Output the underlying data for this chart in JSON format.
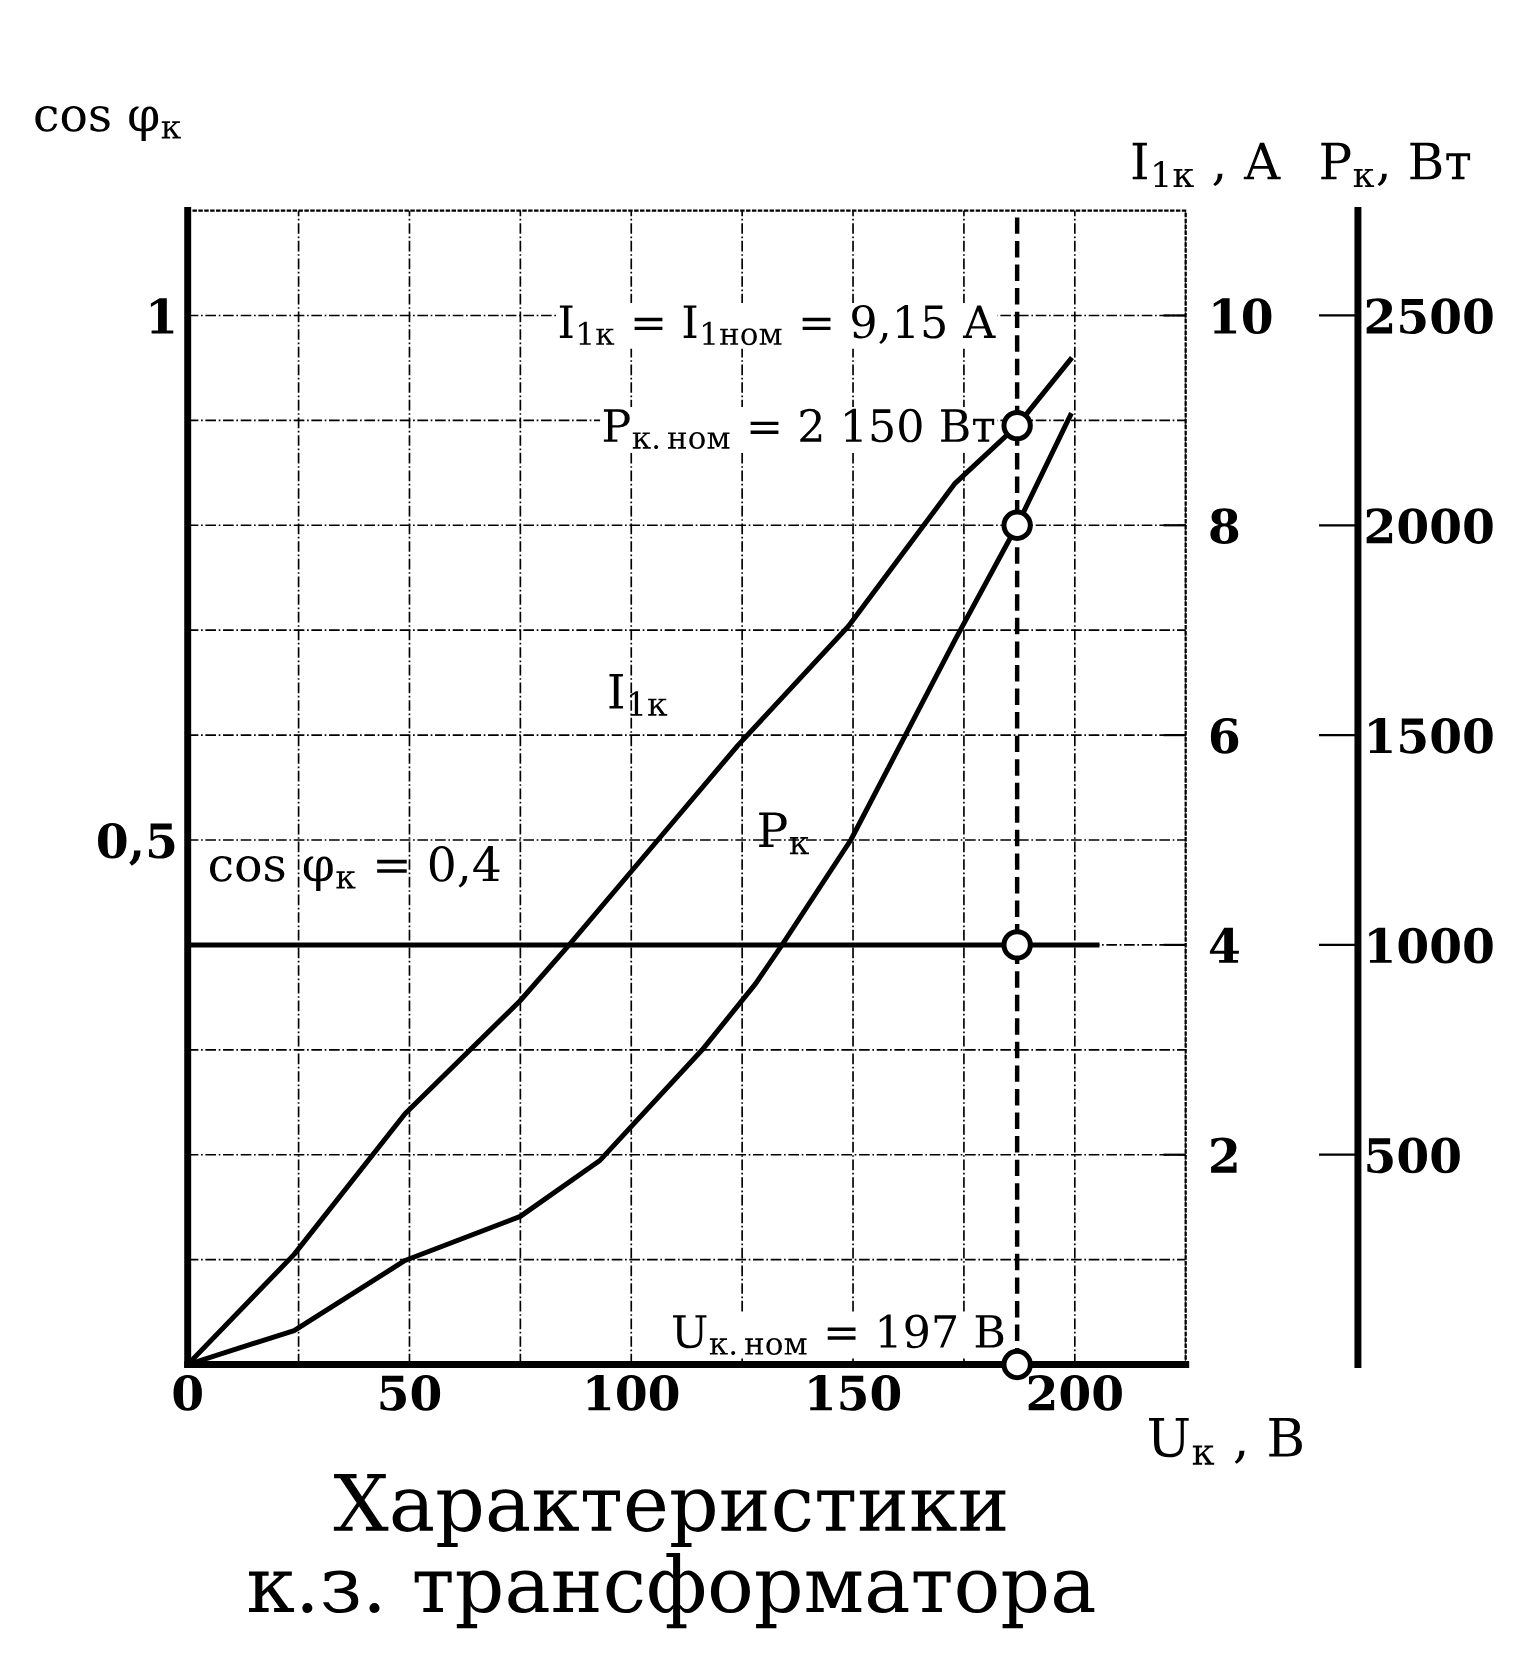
{
  "chart_data": {
    "type": "line",
    "title": "Характеристики\nк.з. трансформатора",
    "xlabel": "U$_{к}$ , В",
    "ylabel": "cos φ$_{к}$",
    "y2label": "I$_{1к}$ , А",
    "y3label": "P$_{к}$, Вт",
    "xlim": [
      0,
      225
    ],
    "xticks": [
      0,
      {
        "value": 25,
        "label": null
      },
      50,
      {
        "value": 75,
        "label": null
      },
      100,
      {
        "value": 125,
        "label": null
      },
      150,
      {
        "value": 175,
        "label": null
      },
      200,
      {
        "value": 225,
        "label": null
      }
    ],
    "ylim": [
      0,
      1.1
    ],
    "yticks": [
      {
        "value": 0.1,
        "label": null
      },
      {
        "value": 0.2,
        "label": null
      },
      {
        "value": 0.3,
        "label": null
      },
      {
        "value": 0.4,
        "label": null
      },
      {
        "value": 0.5,
        "label": "0,5"
      },
      {
        "value": 0.6,
        "label": null
      },
      {
        "value": 0.7,
        "label": null
      },
      {
        "value": 0.8,
        "label": null
      },
      {
        "value": 0.9,
        "label": null
      },
      {
        "value": 1,
        "label": "1"
      }
    ],
    "y2lim": [
      0,
      11
    ],
    "y2ticks": [
      2,
      4,
      6,
      8,
      10
    ],
    "y3lim": [
      0,
      2750
    ],
    "y3ticks": [
      500,
      1000,
      1500,
      2000,
      2500
    ],
    "grid": true,
    "legend": false,
    "series": [
      {
        "name": "I$_{1к}$",
        "axis": "y2",
        "color": "#000000",
        "x": [
          0,
          24,
          49,
          75,
          86,
          106,
          124,
          149,
          173,
          187,
          199
        ],
        "values": [
          0,
          1.05,
          2.39,
          3.47,
          4.0,
          5.0,
          5.9,
          7.04,
          8.4,
          8.95,
          9.58
        ]
      },
      {
        "name": "P$_{к}$",
        "axis": "y3",
        "color": "#000000",
        "x": [
          0,
          24,
          49,
          75,
          93,
          116,
          128,
          134,
          149.5,
          173,
          187,
          199
        ],
        "values": [
          0,
          81,
          248,
          353,
          487,
          750,
          907,
          1000,
          1250,
          1727,
          2000,
          2262
        ]
      },
      {
        "name": "cos φ$_{к}$ = 0,4",
        "color": "#000000",
        "x": [
          0,
          205
        ],
        "values": [
          0.4,
          0.4
        ]
      },
      {
        "type": "scatter",
        "axis": "y2",
        "color": "#000000",
        "marker": "circle",
        "x": [
          187
        ],
        "values": [
          8.95
        ]
      },
      {
        "type": "scatter",
        "axis": "y3",
        "color": "#000000",
        "marker": "circle",
        "x": [
          187
        ],
        "values": [
          2000
        ]
      },
      {
        "type": "scatter",
        "color": "#000000",
        "marker": "circle",
        "x": [
          187,
          187
        ],
        "values": [
          0.4,
          0
        ]
      }
    ],
    "ref_lines": [
      {
        "axis": "x",
        "value": 187,
        "line_style": "dashed",
        "color": "#000000"
      }
    ],
    "annotations": [
      "I$_{1к}$ = I$_{1ном}$ = 9,15 А",
      "P$_{к.ном}$ = 2 150 Вт",
      "U$_{к.ном}$ = 197 В"
    ]
  }
}
